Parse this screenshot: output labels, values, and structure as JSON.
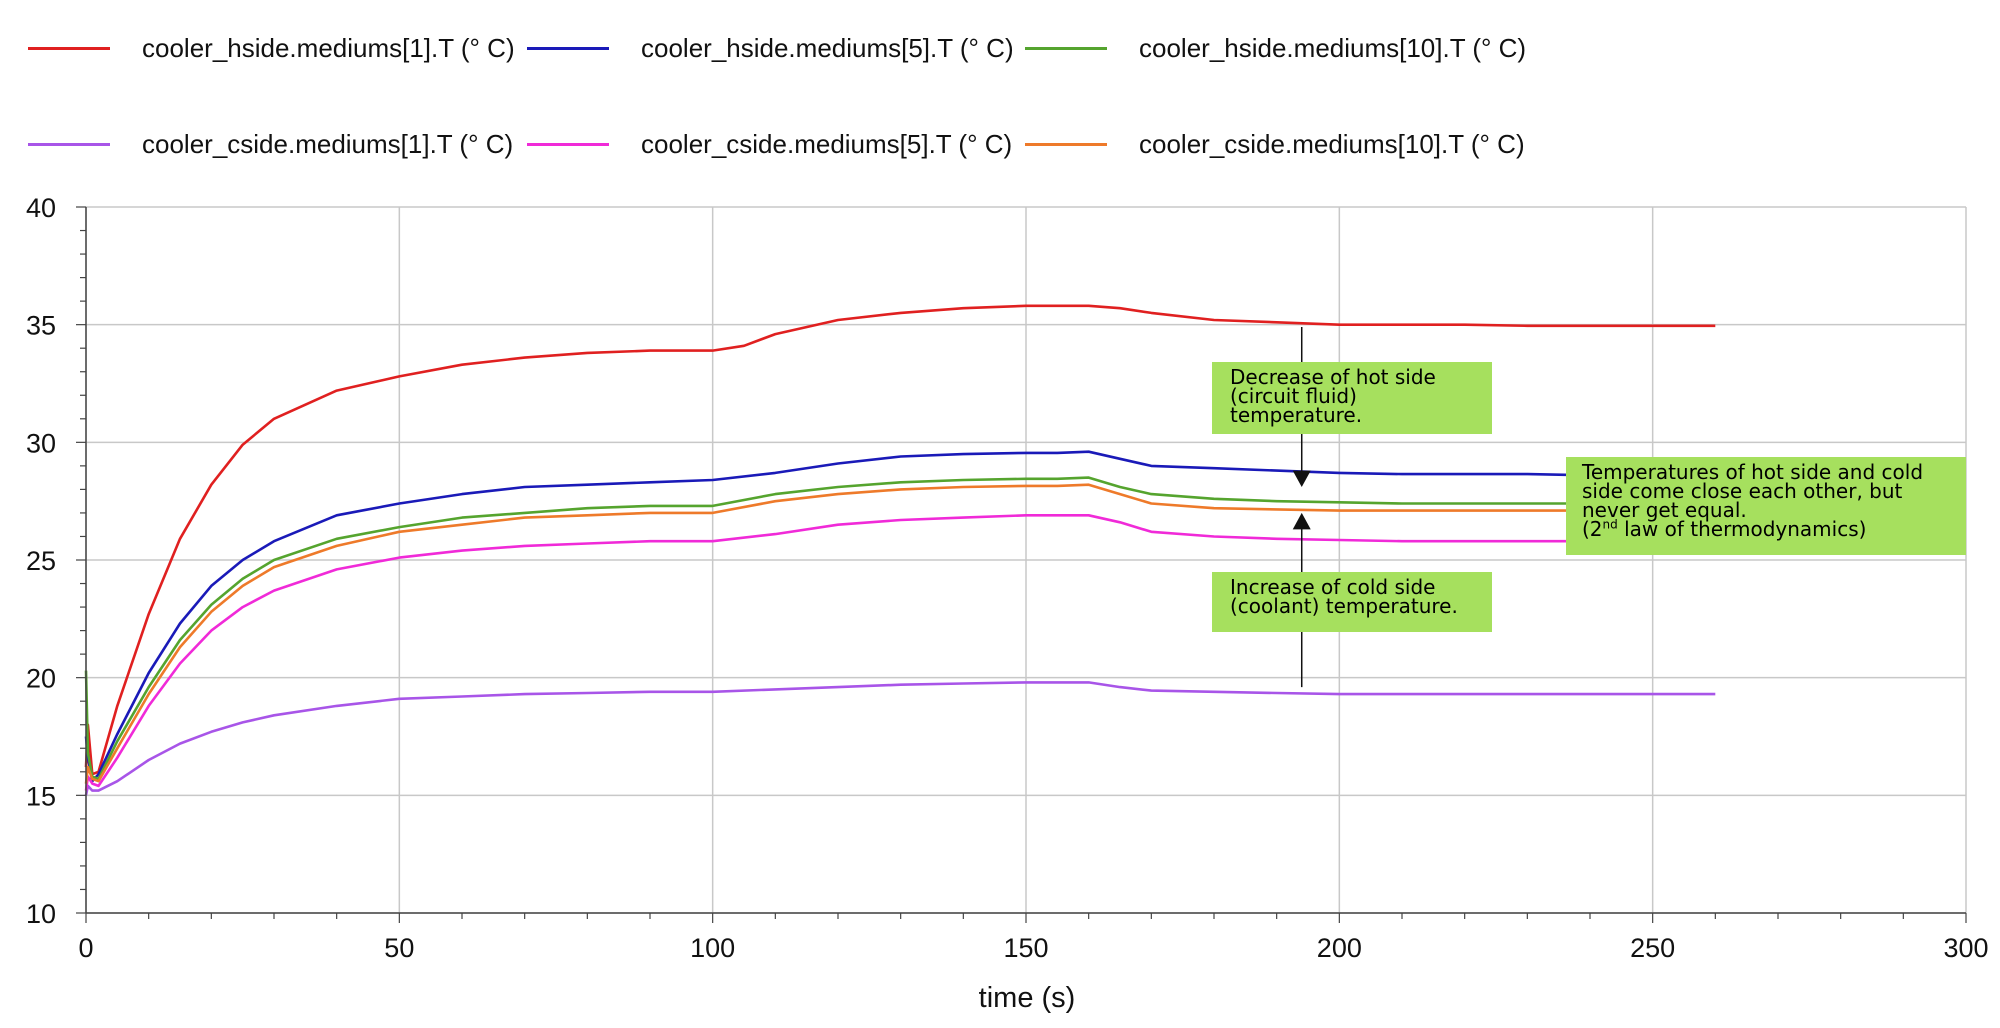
{
  "legend": {
    "items": [
      {
        "label": "cooler_hside.mediums[1].T (° C)",
        "color": "#e02020"
      },
      {
        "label": "cooler_hside.mediums[5].T (° C)",
        "color": "#1a1ab8"
      },
      {
        "label": "cooler_hside.mediums[10].T (° C)",
        "color": "#55a42e"
      },
      {
        "label": "cooler_cside.mediums[1].T (° C)",
        "color": "#a855e8"
      },
      {
        "label": "cooler_cside.mediums[5].T (° C)",
        "color": "#f02ad8"
      },
      {
        "label": "cooler_cside.mediums[10].T (° C)",
        "color": "#ee7a2a"
      }
    ]
  },
  "annotations": {
    "hot_note": [
      "Decrease of hot side",
      "(circuit fluid)",
      "temperature."
    ],
    "cold_note": [
      "Increase of cold side",
      "(coolant) temperature."
    ],
    "law_note": [
      "Temperatures of hot side and cold",
      "side come close each other, but",
      "never get equal."
    ],
    "law_note_last_prefix": "(2",
    "law_note_last_sup": "nd",
    "law_note_last_suffix": " law of thermodynamics)",
    "note_color": "#a6e05e"
  },
  "chart_data": {
    "type": "line",
    "xlabel": "time (s)",
    "ylabel": "",
    "xlim": [
      0,
      300
    ],
    "ylim": [
      10,
      40
    ],
    "xticks": [
      0,
      50,
      100,
      150,
      200,
      250,
      300
    ],
    "yticks": [
      10,
      15,
      20,
      25,
      30,
      35,
      40
    ],
    "grid": true,
    "legend_position": "top",
    "series": [
      {
        "name": "cooler_hside.mediums[1].T (° C)",
        "color": "#e02020",
        "x": [
          0,
          0.3,
          1,
          2,
          5,
          10,
          15,
          20,
          25,
          30,
          40,
          50,
          60,
          70,
          80,
          90,
          100,
          105,
          110,
          120,
          130,
          140,
          150,
          155,
          160,
          165,
          170,
          180,
          190,
          200,
          210,
          220,
          230,
          240,
          250,
          260
        ],
        "y": [
          16.2,
          18.0,
          15.9,
          16.0,
          18.8,
          22.7,
          25.9,
          28.2,
          29.9,
          31.0,
          32.2,
          32.8,
          33.3,
          33.6,
          33.8,
          33.9,
          33.9,
          34.1,
          34.6,
          35.2,
          35.5,
          35.7,
          35.8,
          35.8,
          35.8,
          35.7,
          35.5,
          35.2,
          35.1,
          35.0,
          35.0,
          35.0,
          34.95,
          34.95,
          34.95,
          34.95
        ]
      },
      {
        "name": "cooler_hside.mediums[5].T (° C)",
        "color": "#1a1ab8",
        "x": [
          0,
          0.3,
          1,
          2,
          5,
          10,
          15,
          20,
          25,
          30,
          40,
          50,
          60,
          70,
          80,
          90,
          100,
          110,
          120,
          130,
          140,
          150,
          155,
          160,
          165,
          170,
          180,
          190,
          200,
          210,
          220,
          230,
          240,
          250,
          260
        ],
        "y": [
          17.5,
          16.6,
          15.6,
          15.9,
          17.6,
          20.2,
          22.3,
          23.9,
          25.0,
          25.8,
          26.9,
          27.4,
          27.8,
          28.1,
          28.2,
          28.3,
          28.4,
          28.7,
          29.1,
          29.4,
          29.5,
          29.55,
          29.55,
          29.6,
          29.3,
          29.0,
          28.9,
          28.8,
          28.7,
          28.65,
          28.65,
          28.65,
          28.6,
          28.6,
          28.6
        ]
      },
      {
        "name": "cooler_hside.mediums[10].T (° C)",
        "color": "#55a42e",
        "x": [
          0,
          0.3,
          1,
          2,
          5,
          10,
          15,
          20,
          25,
          30,
          40,
          50,
          60,
          70,
          80,
          90,
          100,
          110,
          120,
          130,
          140,
          150,
          155,
          160,
          165,
          170,
          180,
          190,
          200,
          210,
          220,
          230,
          240,
          250,
          260
        ],
        "y": [
          20.3,
          16.8,
          15.8,
          15.7,
          17.3,
          19.6,
          21.6,
          23.1,
          24.2,
          25.0,
          25.9,
          26.4,
          26.8,
          27.0,
          27.2,
          27.3,
          27.3,
          27.8,
          28.1,
          28.3,
          28.4,
          28.45,
          28.45,
          28.5,
          28.1,
          27.8,
          27.6,
          27.5,
          27.45,
          27.4,
          27.4,
          27.4,
          27.4,
          27.4,
          27.4
        ]
      },
      {
        "name": "cooler_cside.mediums[1].T (° C)",
        "color": "#a855e8",
        "x": [
          0,
          0.3,
          1,
          2,
          5,
          10,
          15,
          20,
          25,
          30,
          40,
          50,
          60,
          70,
          80,
          90,
          100,
          110,
          120,
          130,
          140,
          150,
          155,
          160,
          165,
          170,
          180,
          190,
          200,
          210,
          220,
          230,
          240,
          250,
          260
        ],
        "y": [
          15.0,
          15.4,
          15.2,
          15.2,
          15.6,
          16.5,
          17.2,
          17.7,
          18.1,
          18.4,
          18.8,
          19.1,
          19.2,
          19.3,
          19.35,
          19.4,
          19.4,
          19.5,
          19.6,
          19.7,
          19.75,
          19.8,
          19.8,
          19.8,
          19.6,
          19.45,
          19.4,
          19.35,
          19.3,
          19.3,
          19.3,
          19.3,
          19.3,
          19.3,
          19.3
        ]
      },
      {
        "name": "cooler_cside.mediums[5].T (° C)",
        "color": "#f02ad8",
        "x": [
          0,
          0.3,
          1,
          2,
          5,
          10,
          15,
          20,
          25,
          30,
          40,
          50,
          60,
          70,
          80,
          90,
          100,
          110,
          120,
          130,
          140,
          150,
          155,
          160,
          165,
          170,
          180,
          190,
          200,
          210,
          220,
          230,
          240,
          250,
          260
        ],
        "y": [
          15.2,
          15.8,
          15.5,
          15.4,
          16.6,
          18.8,
          20.6,
          22.0,
          23.0,
          23.7,
          24.6,
          25.1,
          25.4,
          25.6,
          25.7,
          25.8,
          25.8,
          26.1,
          26.5,
          26.7,
          26.8,
          26.9,
          26.9,
          26.9,
          26.6,
          26.2,
          26.0,
          25.9,
          25.85,
          25.8,
          25.8,
          25.8,
          25.8,
          25.8,
          25.8
        ]
      },
      {
        "name": "cooler_cside.mediums[10].T (° C)",
        "color": "#ee7a2a",
        "x": [
          0,
          0.3,
          1,
          2,
          5,
          10,
          15,
          20,
          25,
          30,
          40,
          50,
          60,
          70,
          80,
          90,
          100,
          110,
          120,
          130,
          140,
          150,
          155,
          160,
          165,
          170,
          180,
          190,
          200,
          210,
          220,
          230,
          240,
          250,
          260
        ],
        "y": [
          15.5,
          16.2,
          15.7,
          15.6,
          17.0,
          19.3,
          21.3,
          22.8,
          23.9,
          24.7,
          25.6,
          26.2,
          26.5,
          26.8,
          26.9,
          27.0,
          27.0,
          27.5,
          27.8,
          28.0,
          28.1,
          28.15,
          28.15,
          28.2,
          27.8,
          27.4,
          27.2,
          27.15,
          27.1,
          27.1,
          27.1,
          27.1,
          27.1,
          27.1,
          27.1
        ]
      }
    ]
  }
}
